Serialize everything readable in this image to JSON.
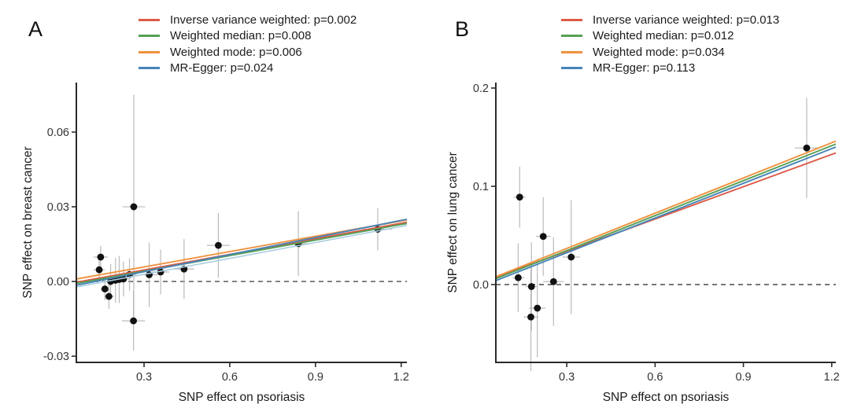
{
  "figure": {
    "background": "#ffffff",
    "point_color": "#111111",
    "error_bar_color": "#bbbbbb",
    "axis_color": "#2b2b2b",
    "zero_line_color": "#4a4a4a"
  },
  "chart_data": [
    {
      "type": "scatter",
      "panel_label": "A",
      "xlabel": "SNP effect on psoriasis",
      "ylabel": "SNP effect on breast cancer",
      "xlim": [
        0.063,
        1.22
      ],
      "ylim": [
        -0.0325,
        0.0799
      ],
      "grid": false,
      "zero_reference_line": 0,
      "x_ticks": [
        {
          "v": 0.3,
          "label": "0.3"
        },
        {
          "v": 0.6,
          "label": "0.6"
        },
        {
          "v": 0.9,
          "label": "0.9"
        },
        {
          "v": 1.2,
          "label": "1.2"
        }
      ],
      "y_ticks": [
        {
          "v": -0.03,
          "label": "-0.03"
        },
        {
          "v": 0.0,
          "label": "0.00"
        },
        {
          "v": 0.03,
          "label": "0.03"
        },
        {
          "v": 0.06,
          "label": "0.06"
        }
      ],
      "points": [
        {
          "x": 0.148,
          "y": 0.0098,
          "xerr": 0.025,
          "yerr": 0.0045
        },
        {
          "x": 0.143,
          "y": 0.0047,
          "xerr": 0.02,
          "yerr": 0.004
        },
        {
          "x": 0.163,
          "y": -0.003,
          "xerr": 0.015,
          "yerr": 0.0045
        },
        {
          "x": 0.177,
          "y": -0.006,
          "xerr": 0.018,
          "yerr": 0.005
        },
        {
          "x": 0.183,
          "y": 0.0,
          "xerr": 0.015,
          "yerr": 0.007
        },
        {
          "x": 0.2,
          "y": 0.0005,
          "xerr": 0.018,
          "yerr": 0.009
        },
        {
          "x": 0.213,
          "y": 0.0008,
          "xerr": 0.018,
          "yerr": 0.0095
        },
        {
          "x": 0.228,
          "y": 0.001,
          "xerr": 0.02,
          "yerr": 0.007
        },
        {
          "x": 0.249,
          "y": 0.0028,
          "xerr": 0.025,
          "yerr": 0.0065
        },
        {
          "x": 0.263,
          "y": -0.0158,
          "xerr": 0.04,
          "yerr": 0.012
        },
        {
          "x": 0.264,
          "y": 0.03,
          "xerr": 0.04,
          "yerr": 0.045
        },
        {
          "x": 0.318,
          "y": 0.0027,
          "xerr": 0.03,
          "yerr": 0.013
        },
        {
          "x": 0.358,
          "y": 0.0038,
          "xerr": 0.03,
          "yerr": 0.009
        },
        {
          "x": 0.44,
          "y": 0.005,
          "xerr": 0.035,
          "yerr": 0.012
        },
        {
          "x": 0.56,
          "y": 0.0145,
          "xerr": 0.04,
          "yerr": 0.013
        },
        {
          "x": 0.84,
          "y": 0.0152,
          "xerr": 0.04,
          "yerr": 0.013
        },
        {
          "x": 1.118,
          "y": 0.021,
          "xerr": 0.05,
          "yerr": 0.0085
        }
      ],
      "lines": [
        {
          "name": "Inverse variance weighted",
          "color": "#dd5a47",
          "y0": -0.0003,
          "y1": 0.0238
        },
        {
          "name": "Weighted median",
          "color": "#55a054",
          "y0": -0.0008,
          "y1": 0.0233
        },
        {
          "name": "Weighted mode",
          "color": "#f0913c",
          "y0": 0.001,
          "y1": 0.0247
        },
        {
          "name": "MR-Egger",
          "color": "#4784b8",
          "y0": -0.0015,
          "y1": 0.025
        }
      ],
      "extra_lines": [
        {
          "name": "unlabeled-light-blue-line",
          "color": "#aacde0",
          "y0": -0.0022,
          "y1": 0.0225
        }
      ],
      "legend": [
        {
          "label": "Inverse variance weighted: p=0.002",
          "color": "#dd5a47"
        },
        {
          "label": "Weighted median: p=0.008",
          "color": "#55a054"
        },
        {
          "label": "Weighted mode: p=0.006",
          "color": "#f0913c"
        },
        {
          "label": "MR-Egger: p=0.024",
          "color": "#4784b8"
        }
      ]
    },
    {
      "type": "scatter",
      "panel_label": "B",
      "xlabel": "SNP effect on psoriasis",
      "ylabel": "SNP effect on lung cancer",
      "xlim": [
        0.059,
        1.214
      ],
      "ylim": [
        -0.0792,
        0.2056
      ],
      "grid": false,
      "zero_reference_line": 0,
      "x_ticks": [
        {
          "v": 0.3,
          "label": "0.3"
        },
        {
          "v": 0.6,
          "label": "0.6"
        },
        {
          "v": 0.9,
          "label": "0.9"
        },
        {
          "v": 1.2,
          "label": "1.2"
        }
      ],
      "y_ticks": [
        {
          "v": 0.0,
          "label": "0.0"
        },
        {
          "v": 0.1,
          "label": "0.1"
        },
        {
          "v": 0.2,
          "label": "0.2"
        }
      ],
      "points": [
        {
          "x": 0.14,
          "y": 0.089,
          "xerr": 0.02,
          "yerr": 0.031
        },
        {
          "x": 0.22,
          "y": 0.049,
          "xerr": 0.025,
          "yerr": 0.04
        },
        {
          "x": 0.315,
          "y": 0.028,
          "xerr": 0.03,
          "yerr": 0.058
        },
        {
          "x": 0.135,
          "y": 0.007,
          "xerr": 0.02,
          "yerr": 0.035
        },
        {
          "x": 0.18,
          "y": -0.002,
          "xerr": 0.02,
          "yerr": 0.045
        },
        {
          "x": 0.255,
          "y": 0.003,
          "xerr": 0.035,
          "yerr": 0.045
        },
        {
          "x": 0.2,
          "y": -0.024,
          "xerr": 0.028,
          "yerr": 0.05
        },
        {
          "x": 0.178,
          "y": -0.033,
          "xerr": 0.025,
          "yerr": 0.055
        },
        {
          "x": 1.115,
          "y": 0.139,
          "xerr": 0.04,
          "yerr": 0.051
        }
      ],
      "lines": [
        {
          "name": "Inverse variance weighted",
          "color": "#dd5a47",
          "y0": 0.0075,
          "y1": 0.134
        },
        {
          "name": "Weighted median",
          "color": "#55a054",
          "y0": 0.006,
          "y1": 0.143
        },
        {
          "name": "Weighted mode",
          "color": "#f0913c",
          "y0": 0.008,
          "y1": 0.146
        },
        {
          "name": "MR-Egger",
          "color": "#4784b8",
          "y0": 0.004,
          "y1": 0.14
        }
      ],
      "extra_lines": [],
      "legend": [
        {
          "label": "Inverse variance weighted: p=0.013",
          "color": "#dd5a47"
        },
        {
          "label": "Weighted median: p=0.012",
          "color": "#55a054"
        },
        {
          "label": "Weighted mode: p=0.034",
          "color": "#f0913c"
        },
        {
          "label": "MR-Egger: p=0.113",
          "color": "#4784b8"
        }
      ]
    }
  ]
}
